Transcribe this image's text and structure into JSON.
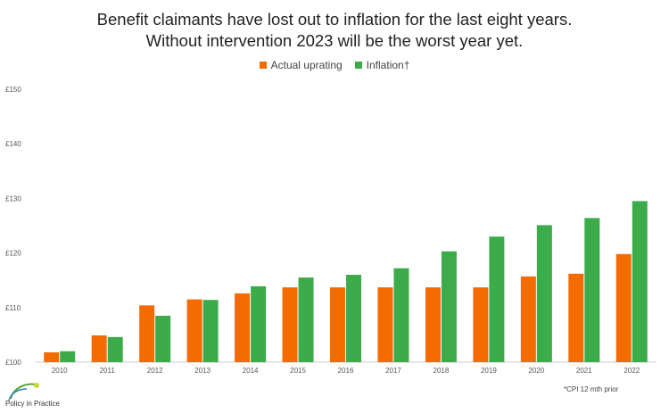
{
  "title_line1": "Benefit claimants have lost out to inflation for the last eight years.",
  "title_line2": "Without intervention 2023 will be the worst year yet.",
  "footnote": "*CPI 12 mth prior",
  "brand": "Policy in Practice",
  "colors": {
    "actual": "#f46b00",
    "inflation": "#3cac4a",
    "axis_text": "#555555"
  },
  "chart_data": {
    "type": "bar",
    "title": "Benefit claimants have lost out to inflation for the last eight years. Without intervention 2023 will be the worst year yet.",
    "categories": [
      "2010",
      "2011",
      "2012",
      "2013",
      "2014",
      "2015",
      "2016",
      "2017",
      "2018",
      "2019",
      "2020",
      "2021",
      "2022"
    ],
    "series": [
      {
        "name": "Actual uprating",
        "values": [
          101.8,
          104.9,
          110.4,
          111.5,
          112.6,
          113.7,
          113.7,
          113.7,
          113.7,
          113.7,
          115.7,
          116.2,
          119.8
        ]
      },
      {
        "name": "Inflation†",
        "values": [
          102.0,
          104.6,
          108.5,
          111.4,
          113.9,
          115.5,
          116.0,
          117.2,
          120.3,
          123.0,
          125.1,
          126.4,
          129.5
        ]
      }
    ],
    "yticks": [
      "£100",
      "£110",
      "£120",
      "£130",
      "£140",
      "£150"
    ],
    "ylim": [
      100,
      150
    ],
    "grid": false,
    "legend_position": "top-center"
  }
}
